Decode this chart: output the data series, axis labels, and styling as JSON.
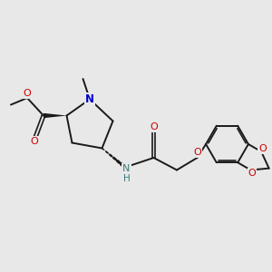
{
  "background_color": "#e8e8e8",
  "bond_color": "#1a1a1a",
  "oxygen_color": "#cc0000",
  "nitrogen_color": "#0000cc",
  "nh_color": "#3a7a7a",
  "figsize": [
    3.0,
    3.0
  ],
  "dpi": 100,
  "xlim": [
    0,
    10
  ],
  "ylim": [
    0,
    10
  ]
}
